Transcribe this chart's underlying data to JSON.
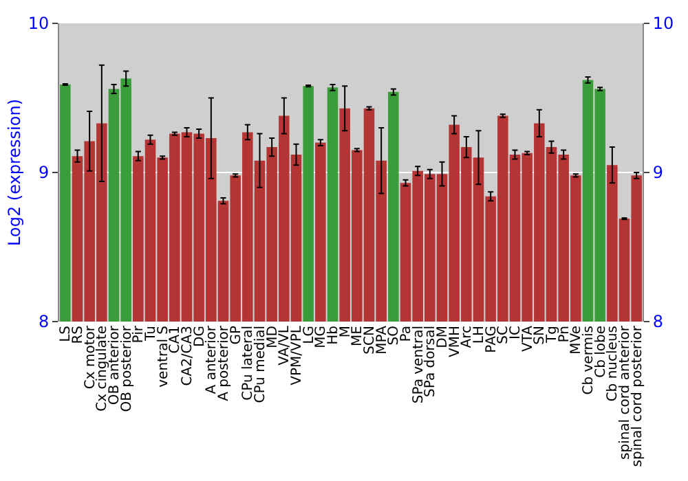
{
  "chart_data": {
    "type": "bar",
    "ylabel": "Log2 (expression)",
    "categories": [
      "LS",
      "RS",
      "Cx motor",
      "Cx cingulate",
      "OB anterior",
      "OB posterior",
      "Pir",
      "Tu",
      "ventral S",
      "CA1",
      "CA2/CA3",
      "DG",
      "A anterior",
      "A posterior",
      "GP",
      "CPu lateral",
      "CPu medial",
      "MD",
      "VA/VL",
      "VPM/VPL",
      "LG",
      "MG",
      "Hb",
      "M",
      "ME",
      "SCN",
      "MPA",
      "SO",
      "Pa",
      "SPa ventral",
      "SPa dorsal",
      "DM",
      "VMH",
      "Arc",
      "LH",
      "PAG",
      "SC",
      "IC",
      "VTA",
      "SN",
      "Tg",
      "Pn",
      "MVe",
      "Cb vermis",
      "Cb lobe",
      "Cb nucleus",
      "spinal cord anterior",
      "spinal cord posterior"
    ],
    "values": [
      9.59,
      9.11,
      9.21,
      9.33,
      9.56,
      9.63,
      9.11,
      9.22,
      9.1,
      9.26,
      9.27,
      9.26,
      9.23,
      8.81,
      8.98,
      9.27,
      9.08,
      9.17,
      9.38,
      9.12,
      9.58,
      9.2,
      9.57,
      9.43,
      9.15,
      9.43,
      9.08,
      9.54,
      8.93,
      9.01,
      8.99,
      8.99,
      9.32,
      9.17,
      9.1,
      8.84,
      9.38,
      9.12,
      9.13,
      9.33,
      9.17,
      9.12,
      8.98,
      9.62,
      9.56,
      9.05,
      8.69,
      8.98
    ],
    "errors": [
      0.005,
      0.04,
      0.2,
      0.39,
      0.03,
      0.05,
      0.03,
      0.03,
      0.01,
      0.01,
      0.03,
      0.03,
      0.27,
      0.02,
      0.01,
      0.05,
      0.18,
      0.06,
      0.12,
      0.07,
      0.005,
      0.02,
      0.02,
      0.15,
      0.01,
      0.01,
      0.22,
      0.02,
      0.02,
      0.03,
      0.03,
      0.08,
      0.06,
      0.07,
      0.18,
      0.03,
      0.01,
      0.03,
      0.01,
      0.09,
      0.04,
      0.03,
      0.01,
      0.02,
      0.01,
      0.12,
      0.005,
      0.02
    ],
    "colors": [
      "#3a9c3a",
      "#b53535",
      "#b53535",
      "#b53535",
      "#3a9c3a",
      "#3a9c3a",
      "#b53535",
      "#b53535",
      "#b53535",
      "#b53535",
      "#b53535",
      "#b53535",
      "#b53535",
      "#b53535",
      "#b53535",
      "#b53535",
      "#b53535",
      "#b53535",
      "#b53535",
      "#b53535",
      "#3a9c3a",
      "#b53535",
      "#3a9c3a",
      "#b53535",
      "#b53535",
      "#b53535",
      "#b53535",
      "#3a9c3a",
      "#b53535",
      "#b53535",
      "#b53535",
      "#b53535",
      "#b53535",
      "#b53535",
      "#b53535",
      "#b53535",
      "#b53535",
      "#b53535",
      "#b53535",
      "#b53535",
      "#b53535",
      "#b53535",
      "#b53535",
      "#3a9c3a",
      "#3a9c3a",
      "#b53535",
      "#b53535",
      "#b53535"
    ],
    "ylim": [
      8,
      10
    ],
    "yticks": [
      8,
      9,
      10
    ],
    "y2lim": [
      8,
      10
    ],
    "y2ticks": [
      8,
      9,
      10
    ],
    "grid": "y"
  }
}
